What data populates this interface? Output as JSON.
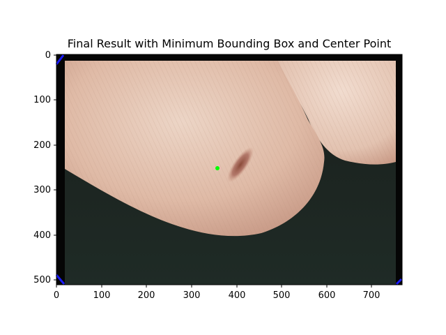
{
  "figure": {
    "title": "Final Result with Minimum Bounding Box and Center Point"
  },
  "axes": {
    "x_ticks": [
      "0",
      "100",
      "200",
      "300",
      "400",
      "500",
      "600",
      "700"
    ],
    "y_ticks": [
      "0",
      "100",
      "200",
      "300",
      "400",
      "500"
    ],
    "x_range": [
      0,
      767
    ],
    "y_range": [
      0,
      511
    ]
  },
  "image": {
    "subject": "dermoscopy photo of a fingertip with a small brown streak lesion",
    "center_point": {
      "x": 360,
      "y": 252,
      "color": "#00ff00"
    },
    "bounding_box_color": "#0000ff"
  }
}
